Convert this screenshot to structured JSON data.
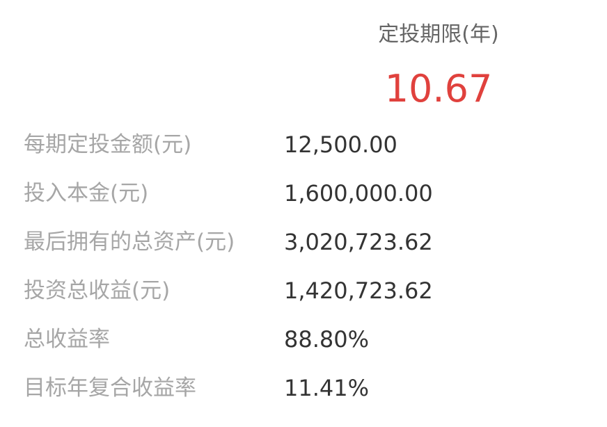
{
  "header": {
    "term_label": "定投期限(年)",
    "term_value": "10.67"
  },
  "rows": [
    {
      "label": "每期定投金额(元)",
      "value": "12,500.00"
    },
    {
      "label": "投入本金(元)",
      "value": "1,600,000.00"
    },
    {
      "label": "最后拥有的总资产(元)",
      "value": "3,020,723.62"
    },
    {
      "label": "投资总收益(元)",
      "value": "1,420,723.62"
    },
    {
      "label": "总收益率",
      "value": "88.80%"
    },
    {
      "label": "目标年复合收益率",
      "value": "11.41%"
    }
  ],
  "colors": {
    "accent": "#e0413d",
    "label": "#a6a6a6",
    "value": "#333333",
    "header_label": "#666666"
  }
}
